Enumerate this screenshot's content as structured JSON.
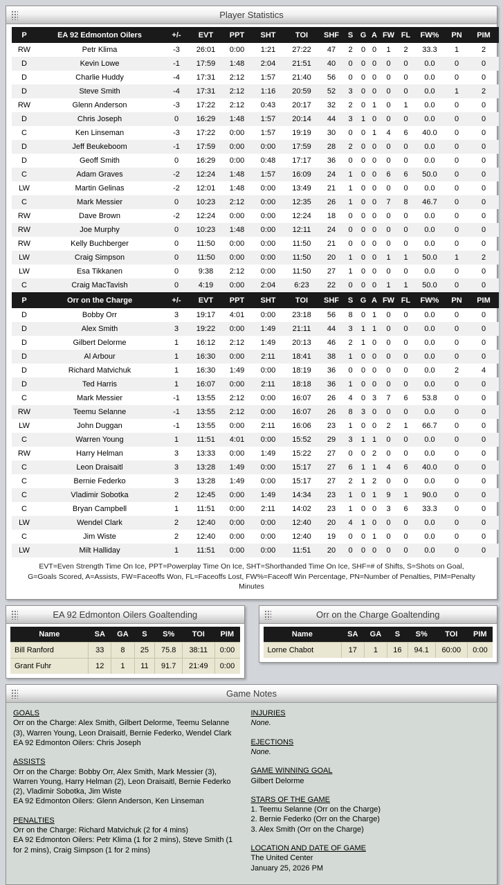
{
  "colors": {
    "page_bg": "#d2d5da",
    "table_header_bg": "#1a1a1a",
    "row_alt_bg": "#f0f0f0",
    "goalie_row_bg": "#e9e6d1",
    "goalie_row_border": "#c8c5ad",
    "notes_bg": "#d4dbd7"
  },
  "player_stats_window": {
    "title": "Player Statistics",
    "stat_columns": [
      "P",
      "+/-",
      "EVT",
      "PPT",
      "SHT",
      "TOI",
      "SHF",
      "S",
      "G",
      "A",
      "FW",
      "FL",
      "FW%",
      "PN",
      "PIM"
    ],
    "teams": [
      {
        "name": "EA 92 Edmonton Oilers",
        "players": [
          [
            "RW",
            "Petr Klima",
            "-3",
            "26:01",
            "0:00",
            "1:21",
            "27:22",
            "47",
            "2",
            "0",
            "0",
            "1",
            "2",
            "33.3",
            "1",
            "2"
          ],
          [
            "D",
            "Kevin Lowe",
            "-1",
            "17:59",
            "1:48",
            "2:04",
            "21:51",
            "40",
            "0",
            "0",
            "0",
            "0",
            "0",
            "0.0",
            "0",
            "0"
          ],
          [
            "D",
            "Charlie Huddy",
            "-4",
            "17:31",
            "2:12",
            "1:57",
            "21:40",
            "56",
            "0",
            "0",
            "0",
            "0",
            "0",
            "0.0",
            "0",
            "0"
          ],
          [
            "D",
            "Steve Smith",
            "-4",
            "17:31",
            "2:12",
            "1:16",
            "20:59",
            "52",
            "3",
            "0",
            "0",
            "0",
            "0",
            "0.0",
            "1",
            "2"
          ],
          [
            "RW",
            "Glenn Anderson",
            "-3",
            "17:22",
            "2:12",
            "0:43",
            "20:17",
            "32",
            "2",
            "0",
            "1",
            "0",
            "1",
            "0.0",
            "0",
            "0"
          ],
          [
            "D",
            "Chris Joseph",
            "0",
            "16:29",
            "1:48",
            "1:57",
            "20:14",
            "44",
            "3",
            "1",
            "0",
            "0",
            "0",
            "0.0",
            "0",
            "0"
          ],
          [
            "C",
            "Ken Linseman",
            "-3",
            "17:22",
            "0:00",
            "1:57",
            "19:19",
            "30",
            "0",
            "0",
            "1",
            "4",
            "6",
            "40.0",
            "0",
            "0"
          ],
          [
            "D",
            "Jeff Beukeboom",
            "-1",
            "17:59",
            "0:00",
            "0:00",
            "17:59",
            "28",
            "2",
            "0",
            "0",
            "0",
            "0",
            "0.0",
            "0",
            "0"
          ],
          [
            "D",
            "Geoff Smith",
            "0",
            "16:29",
            "0:00",
            "0:48",
            "17:17",
            "36",
            "0",
            "0",
            "0",
            "0",
            "0",
            "0.0",
            "0",
            "0"
          ],
          [
            "C",
            "Adam Graves",
            "-2",
            "12:24",
            "1:48",
            "1:57",
            "16:09",
            "24",
            "1",
            "0",
            "0",
            "6",
            "6",
            "50.0",
            "0",
            "0"
          ],
          [
            "LW",
            "Martin Gelinas",
            "-2",
            "12:01",
            "1:48",
            "0:00",
            "13:49",
            "21",
            "1",
            "0",
            "0",
            "0",
            "0",
            "0.0",
            "0",
            "0"
          ],
          [
            "C",
            "Mark Messier",
            "0",
            "10:23",
            "2:12",
            "0:00",
            "12:35",
            "26",
            "1",
            "0",
            "0",
            "7",
            "8",
            "46.7",
            "0",
            "0"
          ],
          [
            "RW",
            "Dave Brown",
            "-2",
            "12:24",
            "0:00",
            "0:00",
            "12:24",
            "18",
            "0",
            "0",
            "0",
            "0",
            "0",
            "0.0",
            "0",
            "0"
          ],
          [
            "RW",
            "Joe Murphy",
            "0",
            "10:23",
            "1:48",
            "0:00",
            "12:11",
            "24",
            "0",
            "0",
            "0",
            "0",
            "0",
            "0.0",
            "0",
            "0"
          ],
          [
            "RW",
            "Kelly Buchberger",
            "0",
            "11:50",
            "0:00",
            "0:00",
            "11:50",
            "21",
            "0",
            "0",
            "0",
            "0",
            "0",
            "0.0",
            "0",
            "0"
          ],
          [
            "LW",
            "Craig Simpson",
            "0",
            "11:50",
            "0:00",
            "0:00",
            "11:50",
            "20",
            "1",
            "0",
            "0",
            "1",
            "1",
            "50.0",
            "1",
            "2"
          ],
          [
            "LW",
            "Esa Tikkanen",
            "0",
            "9:38",
            "2:12",
            "0:00",
            "11:50",
            "27",
            "1",
            "0",
            "0",
            "0",
            "0",
            "0.0",
            "0",
            "0"
          ],
          [
            "C",
            "Craig MacTavish",
            "0",
            "4:19",
            "0:00",
            "2:04",
            "6:23",
            "22",
            "0",
            "0",
            "0",
            "1",
            "1",
            "50.0",
            "0",
            "0"
          ]
        ]
      },
      {
        "name": "Orr on the Charge",
        "players": [
          [
            "D",
            "Bobby Orr",
            "3",
            "19:17",
            "4:01",
            "0:00",
            "23:18",
            "56",
            "8",
            "0",
            "1",
            "0",
            "0",
            "0.0",
            "0",
            "0"
          ],
          [
            "D",
            "Alex Smith",
            "3",
            "19:22",
            "0:00",
            "1:49",
            "21:11",
            "44",
            "3",
            "1",
            "1",
            "0",
            "0",
            "0.0",
            "0",
            "0"
          ],
          [
            "D",
            "Gilbert Delorme",
            "1",
            "16:12",
            "2:12",
            "1:49",
            "20:13",
            "46",
            "2",
            "1",
            "0",
            "0",
            "0",
            "0.0",
            "0",
            "0"
          ],
          [
            "D",
            "Al Arbour",
            "1",
            "16:30",
            "0:00",
            "2:11",
            "18:41",
            "38",
            "1",
            "0",
            "0",
            "0",
            "0",
            "0.0",
            "0",
            "0"
          ],
          [
            "D",
            "Richard Matvichuk",
            "1",
            "16:30",
            "1:49",
            "0:00",
            "18:19",
            "36",
            "0",
            "0",
            "0",
            "0",
            "0",
            "0.0",
            "2",
            "4"
          ],
          [
            "D",
            "Ted Harris",
            "1",
            "16:07",
            "0:00",
            "2:11",
            "18:18",
            "36",
            "1",
            "0",
            "0",
            "0",
            "0",
            "0.0",
            "0",
            "0"
          ],
          [
            "C",
            "Mark Messier",
            "-1",
            "13:55",
            "2:12",
            "0:00",
            "16:07",
            "26",
            "4",
            "0",
            "3",
            "7",
            "6",
            "53.8",
            "0",
            "0"
          ],
          [
            "RW",
            "Teemu Selanne",
            "-1",
            "13:55",
            "2:12",
            "0:00",
            "16:07",
            "26",
            "8",
            "3",
            "0",
            "0",
            "0",
            "0.0",
            "0",
            "0"
          ],
          [
            "LW",
            "John Duggan",
            "-1",
            "13:55",
            "0:00",
            "2:11",
            "16:06",
            "23",
            "1",
            "0",
            "0",
            "2",
            "1",
            "66.7",
            "0",
            "0"
          ],
          [
            "C",
            "Warren Young",
            "1",
            "11:51",
            "4:01",
            "0:00",
            "15:52",
            "29",
            "3",
            "1",
            "1",
            "0",
            "0",
            "0.0",
            "0",
            "0"
          ],
          [
            "RW",
            "Harry Helman",
            "3",
            "13:33",
            "0:00",
            "1:49",
            "15:22",
            "27",
            "0",
            "0",
            "2",
            "0",
            "0",
            "0.0",
            "0",
            "0"
          ],
          [
            "C",
            "Leon Draisaitl",
            "3",
            "13:28",
            "1:49",
            "0:00",
            "15:17",
            "27",
            "6",
            "1",
            "1",
            "4",
            "6",
            "40.0",
            "0",
            "0"
          ],
          [
            "C",
            "Bernie Federko",
            "3",
            "13:28",
            "1:49",
            "0:00",
            "15:17",
            "27",
            "2",
            "1",
            "2",
            "0",
            "0",
            "0.0",
            "0",
            "0"
          ],
          [
            "C",
            "Vladimir Sobotka",
            "2",
            "12:45",
            "0:00",
            "1:49",
            "14:34",
            "23",
            "1",
            "0",
            "1",
            "9",
            "1",
            "90.0",
            "0",
            "0"
          ],
          [
            "C",
            "Bryan Campbell",
            "1",
            "11:51",
            "0:00",
            "2:11",
            "14:02",
            "23",
            "1",
            "0",
            "0",
            "3",
            "6",
            "33.3",
            "0",
            "0"
          ],
          [
            "LW",
            "Wendel Clark",
            "2",
            "12:40",
            "0:00",
            "0:00",
            "12:40",
            "20",
            "4",
            "1",
            "0",
            "0",
            "0",
            "0.0",
            "0",
            "0"
          ],
          [
            "C",
            "Jim Wiste",
            "2",
            "12:40",
            "0:00",
            "0:00",
            "12:40",
            "19",
            "0",
            "0",
            "1",
            "0",
            "0",
            "0.0",
            "0",
            "0"
          ],
          [
            "LW",
            "Milt Halliday",
            "1",
            "11:51",
            "0:00",
            "0:00",
            "11:51",
            "20",
            "0",
            "0",
            "0",
            "0",
            "0",
            "0.0",
            "0",
            "0"
          ]
        ]
      }
    ],
    "legend": "EVT=Even Strength Time On Ice, PPT=Powerplay Time On Ice, SHT=Shorthanded Time On Ice, SHF=# of Shifts, S=Shots on Goal, G=Goals Scored, A=Assists, FW=Faceoffs Won, FL=Faceoffs Lost, FW%=Faceoff Win Percentage, PN=Number of Penalties, PIM=Penalty Minutes"
  },
  "goaltending_windows": [
    {
      "title": "EA 92 Edmonton Oilers Goaltending",
      "columns": [
        "Name",
        "SA",
        "GA",
        "S",
        "S%",
        "TOI",
        "PIM"
      ],
      "rows": [
        [
          "Bill Ranford",
          "33",
          "8",
          "25",
          "75.8",
          "38:11",
          "0:00"
        ],
        [
          "Grant Fuhr",
          "12",
          "1",
          "11",
          "91.7",
          "21:49",
          "0:00"
        ]
      ]
    },
    {
      "title": "Orr on the Charge Goaltending",
      "columns": [
        "Name",
        "SA",
        "GA",
        "S",
        "S%",
        "TOI",
        "PIM"
      ],
      "rows": [
        [
          "Lorne Chabot",
          "17",
          "1",
          "16",
          "94.1",
          "60:00",
          "0:00"
        ]
      ]
    }
  ],
  "game_notes_window": {
    "title": "Game Notes",
    "left_sections": [
      {
        "heading": "GOALS",
        "lines": [
          "Orr on the Charge: Alex Smith, Gilbert Delorme, Teemu Selanne (3), Warren Young, Leon Draisaitl, Bernie Federko, Wendel Clark",
          "EA 92 Edmonton Oilers: Chris Joseph"
        ]
      },
      {
        "heading": "ASSISTS",
        "lines": [
          "Orr on the Charge: Bobby Orr, Alex Smith, Mark Messier (3), Warren Young, Harry Helman (2), Leon Draisaitl, Bernie Federko (2), Vladimir Sobotka, Jim Wiste",
          "EA 92 Edmonton Oilers: Glenn Anderson, Ken Linseman"
        ]
      },
      {
        "heading": "PENALTIES",
        "lines": [
          "Orr on the Charge: Richard Matvichuk (2 for 4 mins)",
          "EA 92 Edmonton Oilers: Petr Klima (1 for 2 mins), Steve Smith (1 for 2 mins), Craig Simpson (1 for 2 mins)"
        ]
      }
    ],
    "right_sections": [
      {
        "heading": "INJURIES",
        "lines": [
          "None."
        ],
        "italic": true
      },
      {
        "heading": "EJECTIONS",
        "lines": [
          "None."
        ],
        "italic": true
      },
      {
        "heading": "GAME WINNING GOAL",
        "lines": [
          "Gilbert Delorme"
        ]
      },
      {
        "heading": "STARS OF THE GAME",
        "lines": [
          "1. Teemu Selanne (Orr on the Charge)",
          "2. Bernie Federko (Orr on the Charge)",
          "3. Alex Smith (Orr on the Charge)"
        ]
      },
      {
        "heading": "LOCATION AND DATE OF GAME",
        "lines": [
          "The United Center",
          "January 25, 2026 PM"
        ]
      }
    ]
  }
}
